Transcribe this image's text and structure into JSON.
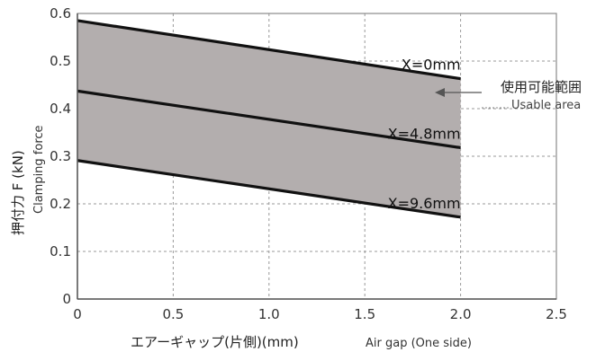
{
  "chart_data": {
    "type": "line",
    "ylabel": "押付力 F (kN)",
    "ylabel_sub": "Clamping force",
    "xlabel": "エアーギャップ(片側)(mm)",
    "xlabel_sub": "Air gap (One side)",
    "xlim": [
      0,
      2.5
    ],
    "ylim": [
      0,
      0.6
    ],
    "xticks": [
      0,
      0.5,
      1.0,
      1.5,
      2.0,
      2.5
    ],
    "xtick_labels": [
      "0",
      "0.5",
      "1.0",
      "1.5",
      "2.0",
      "2.5"
    ],
    "yticks": [
      0,
      0.1,
      0.2,
      0.3,
      0.4,
      0.5,
      0.6
    ],
    "ytick_labels": [
      "0",
      "0.1",
      "0.2",
      "0.3",
      "0.4",
      "0.5",
      "0.6"
    ],
    "grid": true,
    "series": [
      {
        "name": "X=0mm",
        "x": [
          0,
          2.0
        ],
        "y": [
          0.585,
          0.463
        ]
      },
      {
        "name": "X=4.8mm",
        "x": [
          0,
          2.0
        ],
        "y": [
          0.437,
          0.318
        ]
      },
      {
        "name": "X=9.6mm",
        "x": [
          0,
          2.0
        ],
        "y": [
          0.291,
          0.172
        ]
      }
    ],
    "shaded_region": {
      "between": [
        "X=0mm",
        "X=9.6mm"
      ],
      "color": "#b3aeae"
    },
    "annotation": {
      "text": "使用可能範囲",
      "text_sub": "Usable area"
    },
    "line_color": "#111111"
  }
}
